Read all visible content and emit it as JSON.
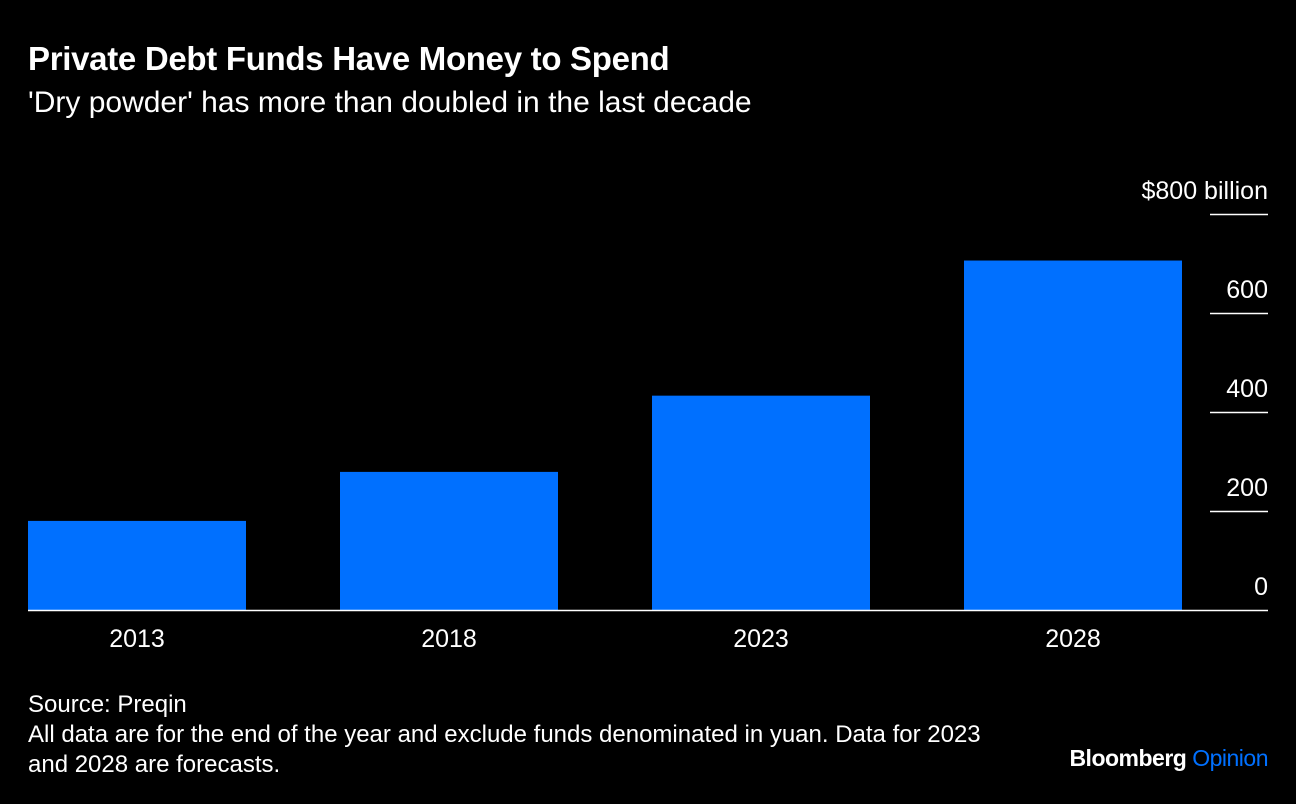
{
  "header": {
    "title": "Private Debt Funds Have Money to Spend",
    "subtitle": "'Dry powder' has more than doubled in the last decade"
  },
  "footer": {
    "source": "Source: Preqin",
    "note": "All data are for the end of the year and exclude funds denominated in yuan. Data for 2023 and 2028 are forecasts.",
    "brand_primary": "Bloomberg",
    "brand_secondary": "Opinion"
  },
  "colors": {
    "background": "#000000",
    "bar": "#0070ff",
    "text": "#ffffff",
    "brand_accent": "#0070ff"
  },
  "chart_data": {
    "type": "bar",
    "categories": [
      "2013",
      "2018",
      "2023",
      "2028"
    ],
    "values": [
      180,
      279,
      433,
      706
    ],
    "title": "Private Debt Funds Have Money to Spend",
    "subtitle": "'Dry powder' has more than doubled in the last decade",
    "xlabel": "",
    "ylabel": "",
    "ylim": [
      0,
      800
    ],
    "yticks": [
      0,
      200,
      400,
      600,
      800
    ],
    "ytick_labels": [
      "0",
      "200",
      "400",
      "600",
      "$800 billion"
    ],
    "y_axis_side": "right",
    "grid": false,
    "legend": "none"
  }
}
